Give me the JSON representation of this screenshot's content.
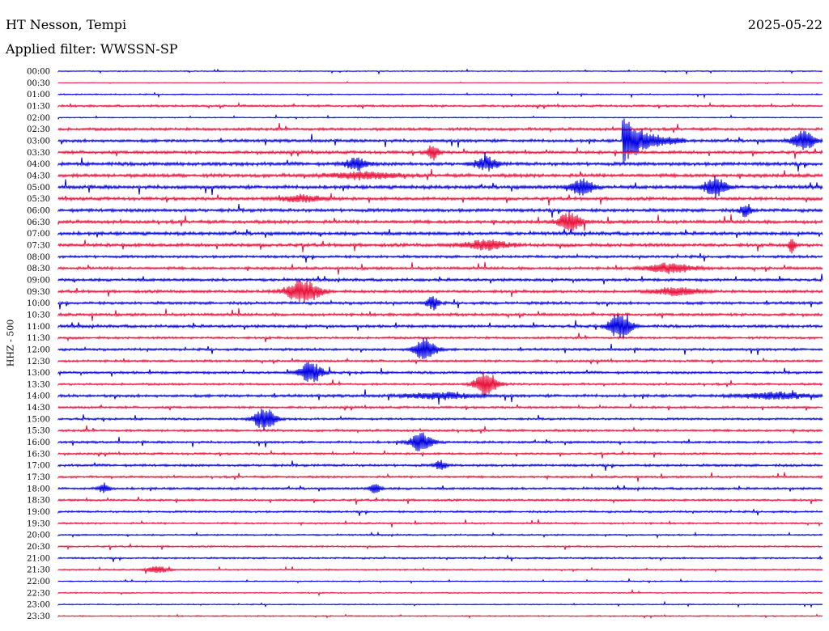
{
  "header": {
    "station": "HT Nesson, Tempi",
    "date": "2025-05-22",
    "filter": "Applied filter: WWSSN-SP"
  },
  "chart_data": {
    "type": "line",
    "ylabel": "HHZ - 500",
    "colors": [
      "#0000e0",
      "#e8103a"
    ],
    "rows": [
      "00:00",
      "00:30",
      "01:00",
      "01:30",
      "02:00",
      "02:30",
      "03:00",
      "03:30",
      "04:00",
      "04:30",
      "05:00",
      "05:30",
      "06:00",
      "06:30",
      "07:00",
      "07:30",
      "08:00",
      "08:30",
      "09:00",
      "09:30",
      "10:00",
      "10:30",
      "11:00",
      "11:30",
      "12:00",
      "12:30",
      "13:00",
      "13:30",
      "14:00",
      "14:30",
      "15:00",
      "15:30",
      "16:00",
      "16:30",
      "17:00",
      "17:30",
      "18:00",
      "18:30",
      "19:00",
      "19:30",
      "20:00",
      "20:30",
      "21:00",
      "21:30",
      "22:00",
      "22:30",
      "23:00",
      "23:30"
    ],
    "noise_level": [
      0.6,
      0.3,
      0.7,
      1.2,
      0.6,
      1.6,
      1.7,
      1.7,
      2.0,
      2.0,
      2.0,
      1.8,
      1.9,
      1.9,
      1.9,
      1.9,
      1.5,
      1.6,
      1.6,
      1.6,
      1.6,
      1.6,
      1.6,
      1.3,
      1.4,
      1.3,
      1.4,
      1.2,
      1.6,
      1.3,
      1.2,
      1.3,
      1.3,
      1.2,
      1.4,
      1.2,
      1.3,
      1.2,
      1.1,
      1.0,
      0.9,
      1.0,
      1.0,
      0.8,
      0.6,
      0.7,
      0.6,
      0.7
    ],
    "events": [
      {
        "row": 6,
        "x": 0.74,
        "amp": 30,
        "dur": 0.08,
        "kind": "quake"
      },
      {
        "row": 6,
        "x": 0.975,
        "amp": 12,
        "dur": 0.01,
        "kind": "spike"
      },
      {
        "row": 7,
        "x": 0.49,
        "amp": 10,
        "dur": 0.005,
        "kind": "spike"
      },
      {
        "row": 8,
        "x": 0.39,
        "amp": 8,
        "dur": 0.01,
        "kind": "spike"
      },
      {
        "row": 8,
        "x": 0.56,
        "amp": 8,
        "dur": 0.01,
        "kind": "spike"
      },
      {
        "row": 9,
        "x": 0.4,
        "amp": 4,
        "dur": 0.03,
        "kind": "burst"
      },
      {
        "row": 10,
        "x": 0.685,
        "amp": 10,
        "dur": 0.01,
        "kind": "spike"
      },
      {
        "row": 10,
        "x": 0.86,
        "amp": 12,
        "dur": 0.01,
        "kind": "spike"
      },
      {
        "row": 11,
        "x": 0.32,
        "amp": 4,
        "dur": 0.02,
        "kind": "burst"
      },
      {
        "row": 12,
        "x": 0.9,
        "amp": 8,
        "dur": 0.005,
        "kind": "spike"
      },
      {
        "row": 13,
        "x": 0.67,
        "amp": 12,
        "dur": 0.01,
        "kind": "spike"
      },
      {
        "row": 15,
        "x": 0.56,
        "amp": 6,
        "dur": 0.02,
        "kind": "burst"
      },
      {
        "row": 15,
        "x": 0.96,
        "amp": 10,
        "dur": 0.003,
        "kind": "spike"
      },
      {
        "row": 17,
        "x": 0.8,
        "amp": 6,
        "dur": 0.02,
        "kind": "burst"
      },
      {
        "row": 19,
        "x": 0.32,
        "amp": 14,
        "dur": 0.015,
        "kind": "spike"
      },
      {
        "row": 19,
        "x": 0.81,
        "amp": 5,
        "dur": 0.02,
        "kind": "burst"
      },
      {
        "row": 20,
        "x": 0.49,
        "amp": 9,
        "dur": 0.005,
        "kind": "spike"
      },
      {
        "row": 22,
        "x": 0.735,
        "amp": 16,
        "dur": 0.01,
        "kind": "spike"
      },
      {
        "row": 24,
        "x": 0.48,
        "amp": 14,
        "dur": 0.01,
        "kind": "spike"
      },
      {
        "row": 26,
        "x": 0.33,
        "amp": 14,
        "dur": 0.01,
        "kind": "spike"
      },
      {
        "row": 27,
        "x": 0.56,
        "amp": 16,
        "dur": 0.01,
        "kind": "spike"
      },
      {
        "row": 28,
        "x": 0.5,
        "amp": 4,
        "dur": 0.03,
        "kind": "burst"
      },
      {
        "row": 28,
        "x": 0.94,
        "amp": 4,
        "dur": 0.03,
        "kind": "burst"
      },
      {
        "row": 30,
        "x": 0.27,
        "amp": 14,
        "dur": 0.01,
        "kind": "spike"
      },
      {
        "row": 32,
        "x": 0.475,
        "amp": 12,
        "dur": 0.01,
        "kind": "spike"
      },
      {
        "row": 34,
        "x": 0.5,
        "amp": 6,
        "dur": 0.005,
        "kind": "spike"
      },
      {
        "row": 36,
        "x": 0.06,
        "amp": 6,
        "dur": 0.005,
        "kind": "spike"
      },
      {
        "row": 36,
        "x": 0.415,
        "amp": 6,
        "dur": 0.005,
        "kind": "spike"
      },
      {
        "row": 43,
        "x": 0.13,
        "amp": 4,
        "dur": 0.01,
        "kind": "burst"
      }
    ]
  }
}
